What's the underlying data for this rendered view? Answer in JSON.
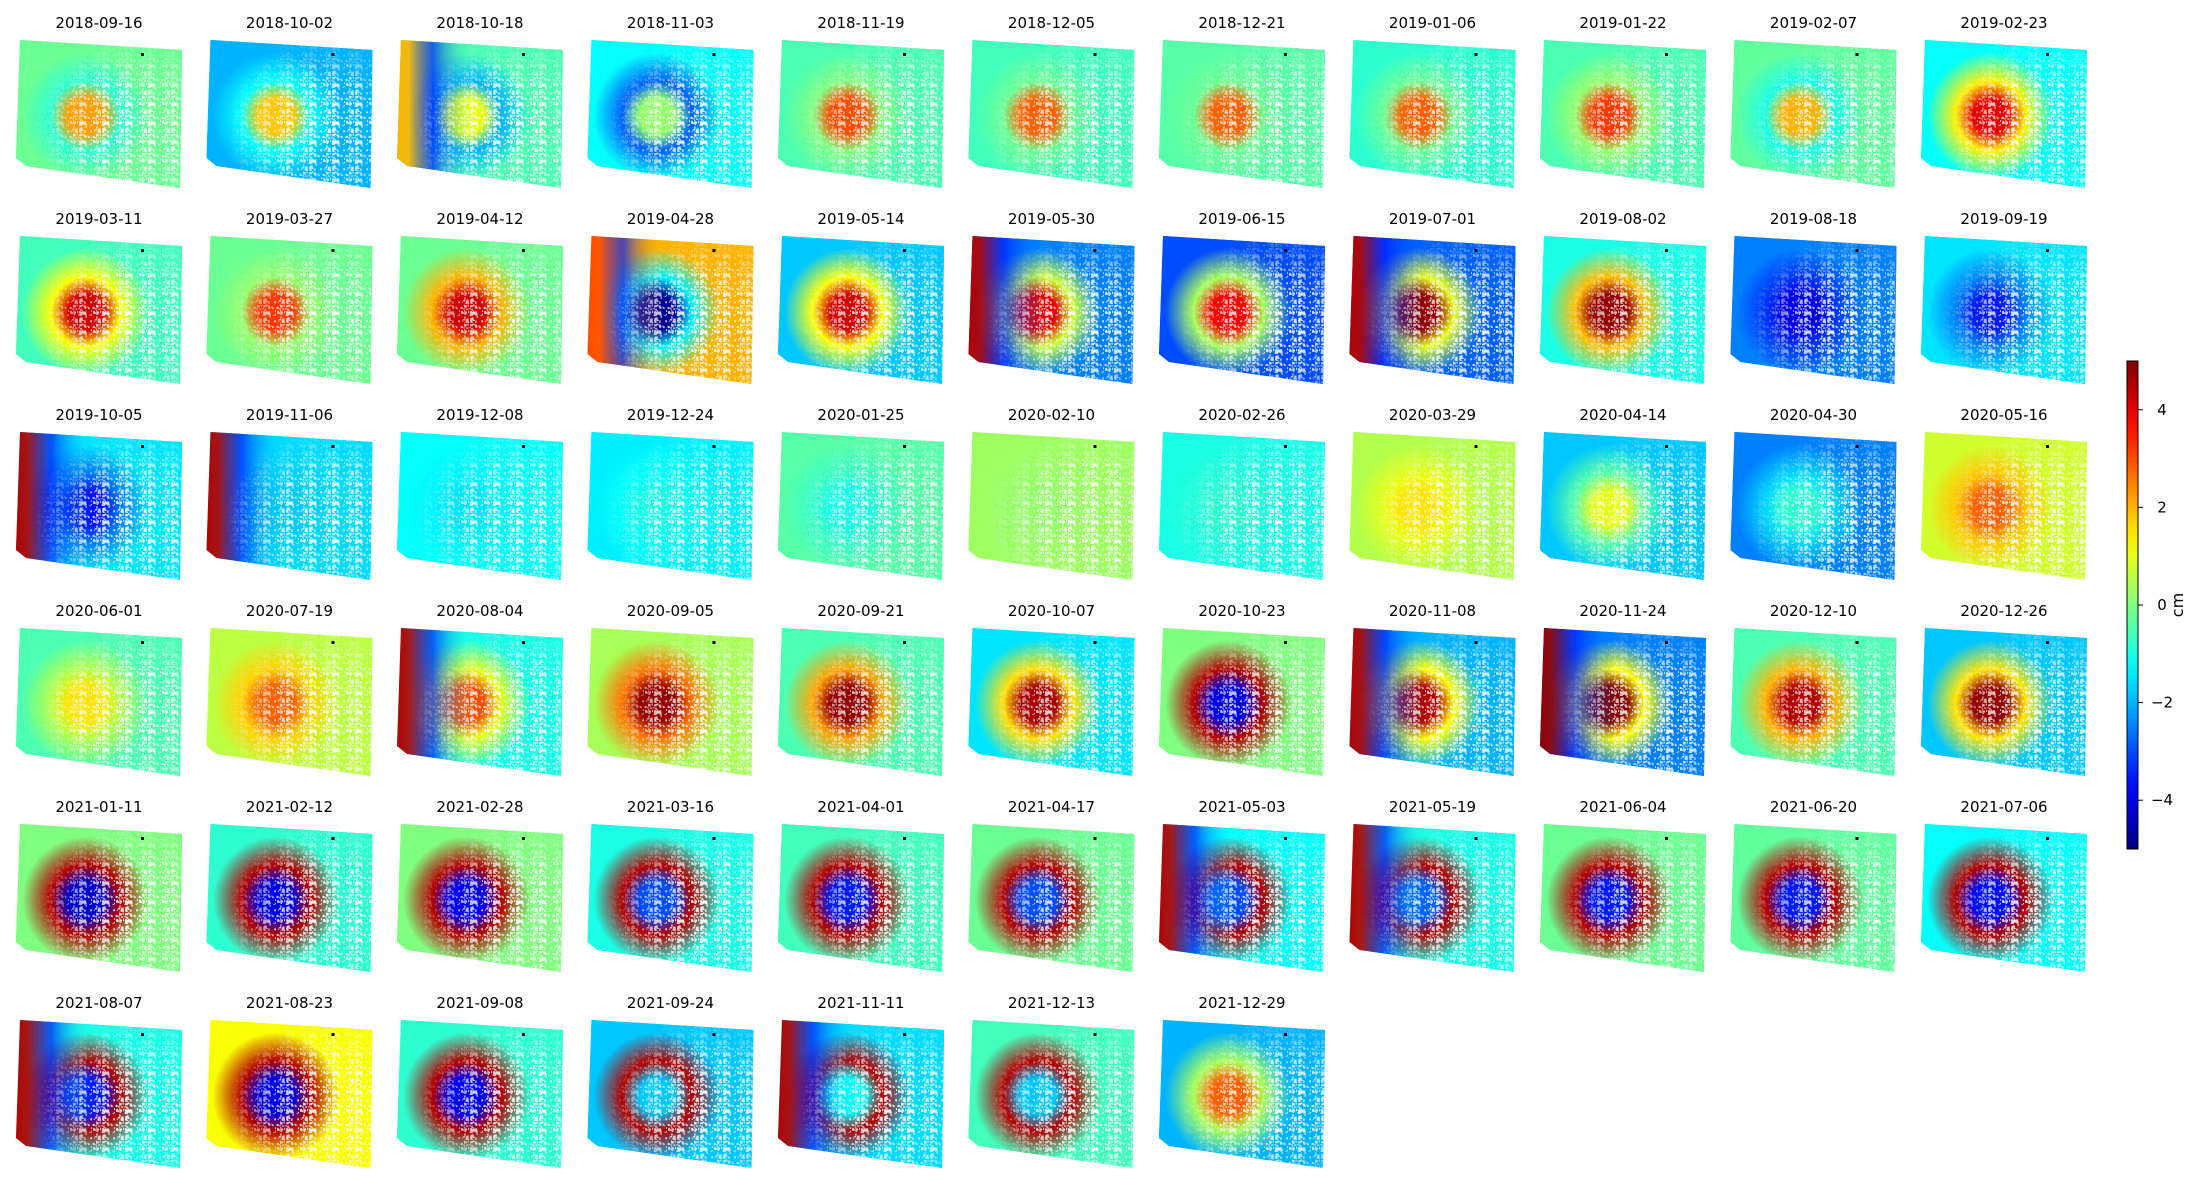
{
  "chart_data": {
    "type": "heatmap",
    "layout": {
      "rows": 6,
      "columns": 11
    },
    "colormap": "jet",
    "colorbar": {
      "label": "cm",
      "range": [
        -5,
        5
      ],
      "ticks": [
        4,
        2,
        0,
        -2,
        -4
      ],
      "tick_labels": [
        "4",
        "2",
        "0",
        "−2",
        "−4"
      ]
    },
    "panels": [
      {
        "date": "2018-09-16",
        "center": 2.2,
        "bg": -0.2,
        "ring": 1
      },
      {
        "date": "2018-10-02",
        "center": 1.8,
        "bg": -2.0,
        "ring": 1
      },
      {
        "date": "2018-10-18",
        "center": 1.0,
        "bg": -0.5,
        "ring": 1,
        "west": 2.0
      },
      {
        "date": "2018-11-03",
        "center": 0.2,
        "bg": -1.2,
        "ring": 1
      },
      {
        "date": "2018-11-19",
        "center": 3.0,
        "bg": -0.5,
        "ring": 1
      },
      {
        "date": "2018-12-05",
        "center": 2.8,
        "bg": -0.6,
        "ring": 1
      },
      {
        "date": "2018-12-21",
        "center": 2.8,
        "bg": -0.4,
        "ring": 1
      },
      {
        "date": "2019-01-06",
        "center": 2.8,
        "bg": -0.8,
        "ring": 1
      },
      {
        "date": "2019-01-22",
        "center": 3.2,
        "bg": -0.5,
        "ring": 1
      },
      {
        "date": "2019-02-07",
        "center": 2.0,
        "bg": -0.3,
        "ring": 1
      },
      {
        "date": "2019-02-23",
        "center": 4.0,
        "bg": -1.2,
        "ring": 0
      },
      {
        "date": "2019-03-11",
        "center": 4.2,
        "bg": -0.6,
        "ring": 1
      },
      {
        "date": "2019-03-27",
        "center": 3.2,
        "bg": -0.2,
        "ring": 1
      },
      {
        "date": "2019-04-12",
        "center": 4.2,
        "bg": -0.2,
        "ring": 0
      },
      {
        "date": "2019-04-28",
        "center": -4.8,
        "bg": 2.0,
        "ring": 0,
        "west": 3.0
      },
      {
        "date": "2019-05-14",
        "center": 4.2,
        "bg": -1.8,
        "ring": 0
      },
      {
        "date": "2019-05-30",
        "center": 4.0,
        "bg": -2.5,
        "ring": 0,
        "west": 4.5
      },
      {
        "date": "2019-06-15",
        "center": 3.8,
        "bg": -3.0,
        "ring": 0
      },
      {
        "date": "2019-07-01",
        "center": 4.8,
        "bg": -2.8,
        "ring": 0,
        "west": 4.5
      },
      {
        "date": "2019-08-02",
        "center": 4.8,
        "bg": -1.0,
        "ring": 0
      },
      {
        "date": "2019-08-18",
        "center": -4.0,
        "bg": -2.5,
        "ring": 0
      },
      {
        "date": "2019-09-19",
        "center": -3.5,
        "bg": -1.5,
        "ring": 0
      },
      {
        "date": "2019-10-05",
        "center": -3.6,
        "bg": -1.5,
        "ring": 0,
        "west": 4.5
      },
      {
        "date": "2019-11-06",
        "center": -1.8,
        "bg": -1.6,
        "ring": 0,
        "west": 4.5
      },
      {
        "date": "2019-12-08",
        "center": -1.5,
        "bg": -1.2,
        "ring": 0
      },
      {
        "date": "2019-12-24",
        "center": -1.0,
        "bg": -1.4,
        "ring": 0
      },
      {
        "date": "2020-01-25",
        "center": -1.0,
        "bg": -0.4,
        "ring": 0
      },
      {
        "date": "2020-02-10",
        "center": 0.2,
        "bg": 0.3,
        "ring": 0
      },
      {
        "date": "2020-02-26",
        "center": -0.8,
        "bg": -1.0,
        "ring": 0
      },
      {
        "date": "2020-03-29",
        "center": 1.5,
        "bg": 0.5,
        "ring": 0
      },
      {
        "date": "2020-04-14",
        "center": 1.0,
        "bg": -1.8,
        "ring": 0
      },
      {
        "date": "2020-04-30",
        "center": -0.8,
        "bg": -2.5,
        "ring": 0
      },
      {
        "date": "2020-05-16",
        "center": 2.8,
        "bg": 0.8,
        "ring": 0
      },
      {
        "date": "2020-06-01",
        "center": 1.5,
        "bg": -0.5,
        "ring": 0
      },
      {
        "date": "2020-07-19",
        "center": 2.8,
        "bg": 0.6,
        "ring": 0
      },
      {
        "date": "2020-08-04",
        "center": 3.0,
        "bg": -1.0,
        "ring": 0,
        "west": 4.5
      },
      {
        "date": "2020-09-05",
        "center": 4.8,
        "bg": 0.4,
        "ring": 0
      },
      {
        "date": "2020-09-21",
        "center": 4.8,
        "bg": -0.5,
        "ring": 0
      },
      {
        "date": "2020-10-07",
        "center": 4.6,
        "bg": -1.5,
        "ring": 0
      },
      {
        "date": "2020-10-23",
        "center": -4.0,
        "bg": 0.0,
        "ring": 2
      },
      {
        "date": "2020-11-08",
        "center": 4.5,
        "bg": -2.0,
        "ring": 0,
        "west": 4.5
      },
      {
        "date": "2020-11-24",
        "center": 5.0,
        "bg": -2.5,
        "ring": 0,
        "west": 4.8
      },
      {
        "date": "2020-12-10",
        "center": 4.5,
        "bg": -0.5,
        "ring": 0
      },
      {
        "date": "2020-12-26",
        "center": 4.8,
        "bg": -1.8,
        "ring": 0
      },
      {
        "date": "2021-01-11",
        "center": -4.2,
        "bg": 0.0,
        "ring": 2
      },
      {
        "date": "2021-02-12",
        "center": -4.0,
        "bg": -0.8,
        "ring": 2
      },
      {
        "date": "2021-02-28",
        "center": -3.8,
        "bg": 0.0,
        "ring": 2
      },
      {
        "date": "2021-03-16",
        "center": -3.0,
        "bg": -1.0,
        "ring": 2
      },
      {
        "date": "2021-04-01",
        "center": -3.5,
        "bg": -0.6,
        "ring": 2
      },
      {
        "date": "2021-04-17",
        "center": -3.0,
        "bg": -0.2,
        "ring": 2
      },
      {
        "date": "2021-05-03",
        "center": -3.0,
        "bg": -1.2,
        "ring": 2,
        "west": 4.5
      },
      {
        "date": "2021-05-19",
        "center": -2.8,
        "bg": -1.0,
        "ring": 2,
        "west": 4.5
      },
      {
        "date": "2021-06-04",
        "center": -3.5,
        "bg": -0.2,
        "ring": 2
      },
      {
        "date": "2021-06-20",
        "center": -3.5,
        "bg": -0.3,
        "ring": 2
      },
      {
        "date": "2021-07-06",
        "center": -3.6,
        "bg": -1.2,
        "ring": 2
      },
      {
        "date": "2021-08-07",
        "center": -3.5,
        "bg": -1.0,
        "ring": 2,
        "west": 4.5
      },
      {
        "date": "2021-08-23",
        "center": -4.0,
        "bg": 1.2,
        "ring": 2
      },
      {
        "date": "2021-09-08",
        "center": -3.8,
        "bg": -0.8,
        "ring": 2
      },
      {
        "date": "2021-09-24",
        "center": -1.8,
        "bg": -1.8,
        "ring": 2
      },
      {
        "date": "2021-11-11",
        "center": -1.2,
        "bg": -1.6,
        "ring": 2,
        "west": 4.5
      },
      {
        "date": "2021-12-13",
        "center": -1.8,
        "bg": -0.6,
        "ring": 2
      },
      {
        "date": "2021-12-29",
        "center": 2.8,
        "bg": -2.0,
        "ring": 0
      }
    ]
  }
}
